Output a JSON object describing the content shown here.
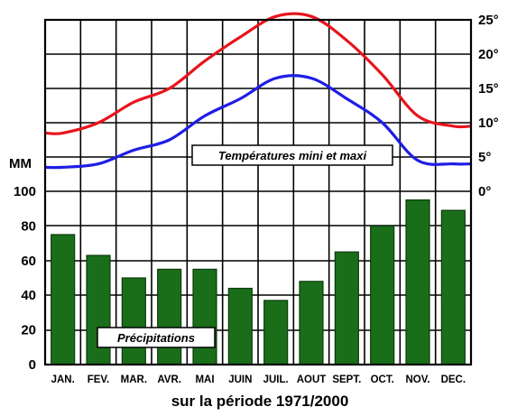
{
  "chart_data": {
    "type": "bar+line",
    "title": "",
    "subtitle": "sur la période 1971/2000",
    "categories": [
      "JAN.",
      "FEV.",
      "MAR.",
      "AVR.",
      "MAI",
      "JUIN",
      "JUIL.",
      "AOUT",
      "SEPT.",
      "OCT.",
      "NOV.",
      "DEC."
    ],
    "precipitation": {
      "label": "Précipitations",
      "unit_label": "MM",
      "values": [
        75,
        63,
        50,
        55,
        55,
        44,
        37,
        48,
        65,
        80,
        95,
        89
      ],
      "ylim": [
        0,
        100
      ],
      "ticks": [
        "0",
        "20",
        "40",
        "60",
        "80",
        "100"
      ],
      "color": "#1a6e1a"
    },
    "temperature": {
      "label": "Températures mini et maxi",
      "ylim": [
        0,
        25
      ],
      "ticks": [
        "0°",
        "5°",
        "10°",
        "15°",
        "20°",
        "25°"
      ],
      "series": [
        {
          "values": [
            8.5,
            10,
            13,
            15,
            19,
            22.5,
            25.5,
            25.5,
            22,
            17,
            11,
            9.5
          ],
          "color": "#e8141c"
        },
        {
          "values": [
            3.5,
            4,
            6,
            7.5,
            11,
            13.5,
            16.5,
            16.5,
            13.5,
            10,
            4.5,
            4
          ],
          "color": "#1e1ee6"
        }
      ]
    },
    "grid": true
  }
}
